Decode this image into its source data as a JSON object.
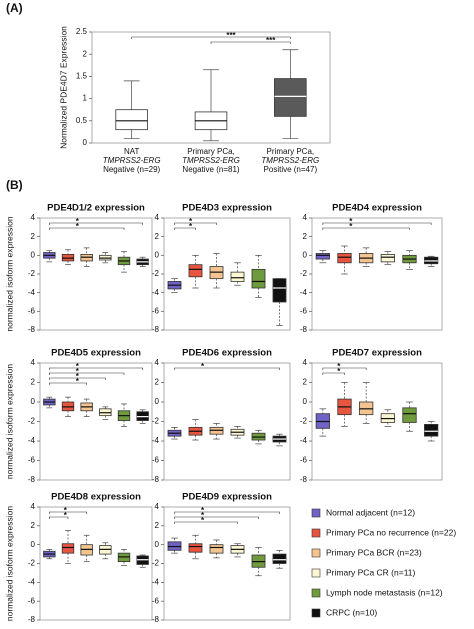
{
  "panel_a_label": "(A)",
  "panel_b_label": "(B)",
  "legend": [
    {
      "name": "Normal adjacent (n=12)",
      "color": "#6f63c6"
    },
    {
      "name": "Primary PCa no recurrence (n=22)",
      "color": "#e8553f"
    },
    {
      "name": "Primary PCa BCR (n=23)",
      "color": "#f3c48f"
    },
    {
      "name": "Primary PCa CR (n=11)",
      "color": "#fdf6d3"
    },
    {
      "name": "Lymph node metastasis (n=12)",
      "color": "#6f9a3d"
    },
    {
      "name": "CRPC (n=10)",
      "color": "#111111"
    }
  ],
  "chart_data": [
    {
      "type": "box",
      "ylabel": "Normalized PDE4D7 Expression",
      "ylim": [
        0,
        2.5
      ],
      "yticks": [
        0,
        0.5,
        1,
        1.5,
        2,
        2.5
      ],
      "categories": [
        [
          "NAT",
          "TMPRSS2-ERG",
          "Negative (n=29)"
        ],
        [
          "Primary PCa,",
          "TMPRSS2-ERG",
          "Negative (n=81)"
        ],
        [
          "Primary PCa,",
          "TMPRSS2-ERG",
          "Positive  (n=47)"
        ]
      ],
      "colors": [
        "#ffffff",
        "#ffffff",
        "#5a5a5a"
      ],
      "boxes": [
        {
          "min": 0.1,
          "q1": 0.3,
          "median": 0.5,
          "q3": 0.75,
          "max": 1.4
        },
        {
          "min": 0.05,
          "q1": 0.3,
          "median": 0.5,
          "q3": 0.7,
          "max": 1.65
        },
        {
          "min": 0.1,
          "q1": 0.6,
          "median": 1.05,
          "q3": 1.45,
          "max": 2.1
        }
      ],
      "annotations": [
        {
          "text": "***",
          "from": 0,
          "to": 2
        },
        {
          "text": "***",
          "from": 1,
          "to": 2
        }
      ]
    },
    {
      "type": "box",
      "title": "PDE4D1/2 expression",
      "ylabel": "normalized isoform expression",
      "ylim": [
        -8,
        4
      ],
      "yticks": [
        4,
        2,
        0,
        -2,
        -4,
        -6,
        -8
      ],
      "boxes": [
        {
          "min": -0.7,
          "q1": -0.3,
          "median": 0,
          "q3": 0.3,
          "max": 0.5
        },
        {
          "min": -1,
          "q1": -0.6,
          "median": -0.3,
          "q3": 0.1,
          "max": 0.6
        },
        {
          "min": -1.2,
          "q1": -0.6,
          "median": -0.2,
          "q3": 0.1,
          "max": 0.8
        },
        {
          "min": -0.8,
          "q1": -0.5,
          "median": -0.3,
          "q3": 0,
          "max": 0.3
        },
        {
          "min": -1.8,
          "q1": -1,
          "median": -0.6,
          "q3": -0.2,
          "max": 0.4
        },
        {
          "min": -1.2,
          "q1": -1,
          "median": -0.7,
          "q3": -0.4,
          "max": -0.2
        }
      ],
      "annotations": [
        {
          "text": "*",
          "from": 0,
          "to": 5
        },
        {
          "text": "*",
          "from": 0,
          "to": 4
        }
      ]
    },
    {
      "type": "box",
      "title": "PDE4D3 expression",
      "ylim": [
        -8,
        4
      ],
      "yticks": [
        4,
        2,
        0,
        -2,
        -4,
        -6,
        -8
      ],
      "boxes": [
        {
          "min": -4,
          "q1": -3.6,
          "median": -3.2,
          "q3": -2.8,
          "max": -2.5
        },
        {
          "min": -3.5,
          "q1": -2.3,
          "median": -1.5,
          "q3": -1,
          "max": 0
        },
        {
          "min": -3.5,
          "q1": -2.5,
          "median": -1.8,
          "q3": -1.2,
          "max": 0.2
        },
        {
          "min": -3.2,
          "q1": -2.8,
          "median": -2.4,
          "q3": -1.8,
          "max": -0.8
        },
        {
          "min": -4.5,
          "q1": -3.5,
          "median": -2.8,
          "q3": -1.5,
          "max": 0
        },
        {
          "min": -7.5,
          "q1": -5,
          "median": -3.5,
          "q3": -2.5,
          "max": -2.5
        }
      ],
      "annotations": [
        {
          "text": "*",
          "from": 0,
          "to": 2
        },
        {
          "text": "*",
          "from": 0,
          "to": 1
        }
      ]
    },
    {
      "type": "box",
      "title": "PDE4D4 expression",
      "ylim": [
        -8,
        4
      ],
      "yticks": [
        4,
        2,
        0,
        -2,
        -4,
        -6,
        -8
      ],
      "boxes": [
        {
          "min": -0.8,
          "q1": -0.4,
          "median": 0,
          "q3": 0.2,
          "max": 0.5
        },
        {
          "min": -2,
          "q1": -0.8,
          "median": -0.2,
          "q3": 0.2,
          "max": 1
        },
        {
          "min": -1.2,
          "q1": -0.8,
          "median": -0.3,
          "q3": 0.2,
          "max": 0.8
        },
        {
          "min": -1,
          "q1": -0.7,
          "median": -0.2,
          "q3": 0.1,
          "max": 0.4
        },
        {
          "min": -1.5,
          "q1": -0.8,
          "median": -0.4,
          "q3": 0,
          "max": 0.5
        },
        {
          "min": -1.2,
          "q1": -0.9,
          "median": -0.6,
          "q3": -0.2,
          "max": -0.1
        }
      ],
      "annotations": [
        {
          "text": "*",
          "from": 0,
          "to": 5
        },
        {
          "text": "*",
          "from": 0,
          "to": 4
        }
      ]
    },
    {
      "type": "box",
      "title": "PDE4D5 expression",
      "ylabel": "normalized isoform expression",
      "ylim": [
        -8,
        4
      ],
      "yticks": [
        4,
        2,
        0,
        -2,
        -4,
        -6,
        -8
      ],
      "boxes": [
        {
          "min": -0.6,
          "q1": -0.3,
          "median": 0,
          "q3": 0.3,
          "max": 0.5
        },
        {
          "min": -1.5,
          "q1": -0.9,
          "median": -0.5,
          "q3": 0,
          "max": 0.5
        },
        {
          "min": -1.5,
          "q1": -0.9,
          "median": -0.5,
          "q3": -0.1,
          "max": 0.3
        },
        {
          "min": -1.8,
          "q1": -1.4,
          "median": -1.1,
          "q3": -0.7,
          "max": -0.5
        },
        {
          "min": -2.5,
          "q1": -1.9,
          "median": -1.4,
          "q3": -0.9,
          "max": -0.2
        },
        {
          "min": -2.2,
          "q1": -1.9,
          "median": -1.5,
          "q3": -1,
          "max": -0.8
        }
      ],
      "annotations": [
        {
          "text": "*",
          "from": 0,
          "to": 5
        },
        {
          "text": "*",
          "from": 0,
          "to": 4
        },
        {
          "text": "*",
          "from": 0,
          "to": 3
        },
        {
          "text": "*",
          "from": 0,
          "to": 2
        }
      ]
    },
    {
      "type": "box",
      "title": "PDE4D6 expression",
      "ylim": [
        -8,
        4
      ],
      "yticks": [
        4,
        2,
        0,
        -2,
        -4,
        -6,
        -8
      ],
      "boxes": [
        {
          "min": -3.8,
          "q1": -3.5,
          "median": -3.2,
          "q3": -2.9,
          "max": -2.6
        },
        {
          "min": -3.9,
          "q1": -3.4,
          "median": -3,
          "q3": -2.6,
          "max": -1.8
        },
        {
          "min": -3.8,
          "q1": -3.3,
          "median": -2.9,
          "q3": -2.6,
          "max": -2.2
        },
        {
          "min": -3.7,
          "q1": -3.4,
          "median": -3.1,
          "q3": -2.8,
          "max": -2.5
        },
        {
          "min": -4.3,
          "q1": -3.9,
          "median": -3.6,
          "q3": -3.2,
          "max": -2.9
        },
        {
          "min": -4.5,
          "q1": -4.1,
          "median": -3.8,
          "q3": -3.5,
          "max": -3.3
        }
      ],
      "annotations": [
        {
          "text": "*",
          "from": 0,
          "to": 5
        }
      ]
    },
    {
      "type": "box",
      "title": "PDE4D7 expression",
      "ylim": [
        -8,
        4
      ],
      "yticks": [
        4,
        2,
        0,
        -2,
        -4,
        -6,
        -8
      ],
      "boxes": [
        {
          "min": -3.5,
          "q1": -2.7,
          "median": -2,
          "q3": -1.2,
          "max": -0.7
        },
        {
          "min": -2.5,
          "q1": -1.3,
          "median": -0.5,
          "q3": 0.3,
          "max": 2
        },
        {
          "min": -2.2,
          "q1": -1.3,
          "median": -0.7,
          "q3": 0,
          "max": 2
        },
        {
          "min": -2.5,
          "q1": -2.1,
          "median": -1.7,
          "q3": -1.2,
          "max": -0.8
        },
        {
          "min": -3,
          "q1": -2.1,
          "median": -1.2,
          "q3": -0.6,
          "max": 0
        },
        {
          "min": -4,
          "q1": -3.5,
          "median": -3,
          "q3": -2.3,
          "max": -2
        }
      ],
      "annotations": [
        {
          "text": "*",
          "from": 0,
          "to": 2
        },
        {
          "text": "*",
          "from": 0,
          "to": 1
        }
      ]
    },
    {
      "type": "box",
      "title": "PDE4D8 expression",
      "ylabel": "normalized isoform expression",
      "ylim": [
        -8,
        4
      ],
      "yticks": [
        4,
        2,
        0,
        -2,
        -4,
        -6,
        -8
      ],
      "boxes": [
        {
          "min": -1.5,
          "q1": -1.3,
          "median": -1,
          "q3": -0.7,
          "max": -0.5
        },
        {
          "min": -2,
          "q1": -0.9,
          "median": -0.3,
          "q3": 0.1,
          "max": 1.5
        },
        {
          "min": -1.8,
          "q1": -1.1,
          "median": -0.5,
          "q3": 0,
          "max": 1
        },
        {
          "min": -1.5,
          "q1": -1,
          "median": -0.5,
          "q3": -0.1,
          "max": 0.2
        },
        {
          "min": -2.2,
          "q1": -1.8,
          "median": -1.3,
          "q3": -0.9,
          "max": -0.5
        },
        {
          "min": -2.4,
          "q1": -2.1,
          "median": -1.6,
          "q3": -1.2,
          "max": -1.1
        }
      ],
      "annotations": [
        {
          "text": "*",
          "from": 0,
          "to": 2
        },
        {
          "text": "*",
          "from": 0,
          "to": 1
        }
      ]
    },
    {
      "type": "box",
      "title": "PDE4D9 expression",
      "ylim": [
        -8,
        4
      ],
      "yticks": [
        4,
        2,
        0,
        -2,
        -4,
        -6,
        -8
      ],
      "boxes": [
        {
          "min": -0.9,
          "q1": -0.6,
          "median": -0.2,
          "q3": 0.3,
          "max": 0.7
        },
        {
          "min": -1.5,
          "q1": -0.8,
          "median": -0.2,
          "q3": 0.1,
          "max": 1
        },
        {
          "min": -1.4,
          "q1": -0.9,
          "median": -0.3,
          "q3": 0,
          "max": 0.5
        },
        {
          "min": -1.3,
          "q1": -0.9,
          "median": -0.5,
          "q3": -0.1,
          "max": 0.1
        },
        {
          "min": -3.3,
          "q1": -2.4,
          "median": -1.8,
          "q3": -1.1,
          "max": -0.3
        },
        {
          "min": -2.5,
          "q1": -2,
          "median": -1.6,
          "q3": -1,
          "max": -0.6
        }
      ],
      "annotations": [
        {
          "text": "*",
          "from": 0,
          "to": 5
        },
        {
          "text": "*",
          "from": 0,
          "to": 4
        },
        {
          "text": "*",
          "from": 0,
          "to": 3
        }
      ]
    }
  ]
}
